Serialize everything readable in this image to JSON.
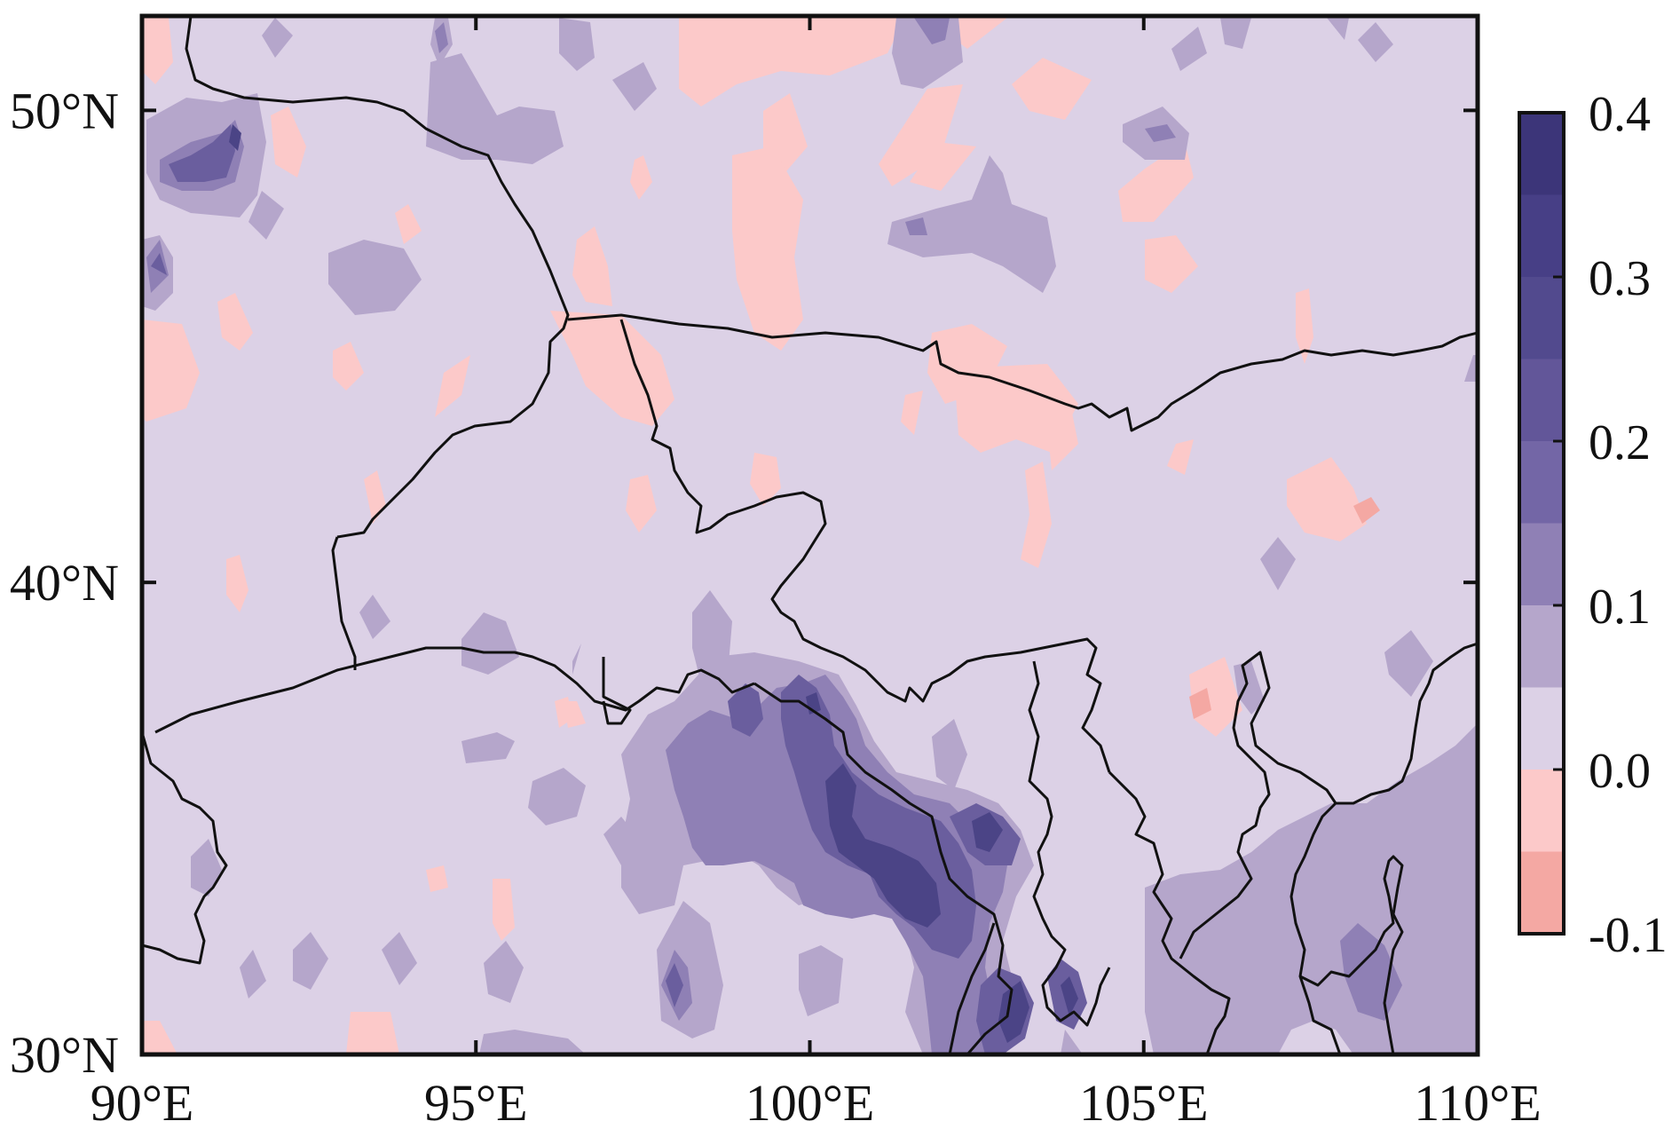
{
  "map": {
    "extent": {
      "lon": [
        90,
        110
      ],
      "lat": [
        30,
        52
      ]
    },
    "x_ticks": [
      {
        "value": 90,
        "label": "90°E"
      },
      {
        "value": 95,
        "label": "95°E"
      },
      {
        "value": 100,
        "label": "100°E"
      },
      {
        "value": 105,
        "label": "105°E"
      },
      {
        "value": 110,
        "label": "110°E"
      }
    ],
    "y_ticks": [
      {
        "value": 30,
        "label": "30°N"
      },
      {
        "value": 40,
        "label": "40°N"
      },
      {
        "value": 50,
        "label": "50°N"
      }
    ],
    "colors": {
      "neg2": "#f4a8a3",
      "neg1": "#fcc9c9",
      "zero": "#dcd1e6",
      "l1": "#b5a6cb",
      "l2": "#8f80b5",
      "l3": "#6a5e9e",
      "l4": "#4b4486",
      "border": "#111111"
    }
  },
  "colorbar": {
    "min": -0.1,
    "max": 0.4,
    "labels": [
      {
        "value": 0.4,
        "label": "0.4"
      },
      {
        "value": 0.3,
        "label": "0.3"
      },
      {
        "value": 0.2,
        "label": "0.2"
      },
      {
        "value": 0.1,
        "label": "0.1"
      },
      {
        "value": 0.0,
        "label": "0.0"
      },
      {
        "value": -0.1,
        "label": "-0.1"
      }
    ],
    "bands": [
      {
        "from": -0.1,
        "to": -0.05,
        "color": "#f4a8a3"
      },
      {
        "from": -0.05,
        "to": 0.0,
        "color": "#fcc9c9"
      },
      {
        "from": 0.0,
        "to": 0.05,
        "color": "#dcd1e6"
      },
      {
        "from": 0.05,
        "to": 0.1,
        "color": "#b5a6cb"
      },
      {
        "from": 0.1,
        "to": 0.15,
        "color": "#8f80b5"
      },
      {
        "from": 0.15,
        "to": 0.2,
        "color": "#7366a6"
      },
      {
        "from": 0.2,
        "to": 0.25,
        "color": "#625699"
      },
      {
        "from": 0.25,
        "to": 0.3,
        "color": "#524a8e"
      },
      {
        "from": 0.3,
        "to": 0.35,
        "color": "#473f86"
      },
      {
        "from": 0.35,
        "to": 0.4,
        "color": "#3c3579"
      }
    ]
  }
}
